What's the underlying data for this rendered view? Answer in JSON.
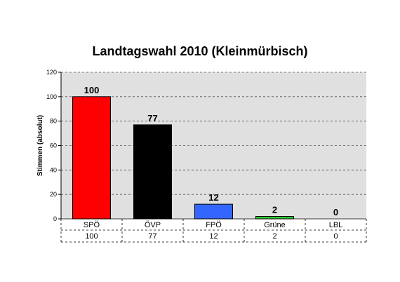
{
  "chart_data": {
    "type": "bar",
    "title": "Landtagswahl 2010 (Kleinmürbisch)",
    "xlabel": "",
    "ylabel": "Stimmen (absolut)",
    "ylim": [
      0,
      120
    ],
    "yticks": [
      0,
      20,
      40,
      60,
      80,
      100,
      120
    ],
    "categories": [
      "SPÖ",
      "ÖVP",
      "FPÖ",
      "Grüne",
      "LBL"
    ],
    "values": [
      100,
      77,
      12,
      2,
      0
    ],
    "value_labels": [
      "100",
      "77",
      "12",
      "2",
      "0"
    ],
    "table_values": [
      "100",
      "77",
      "12",
      "2",
      "0"
    ],
    "colors": [
      "#ff0000",
      "#000000",
      "#3366ff",
      "#33cc33",
      "#ffffff"
    ],
    "plot_background": "#e0e0e0",
    "grid": true,
    "grid_style": "dashed",
    "legend": "none",
    "data_table": true
  }
}
